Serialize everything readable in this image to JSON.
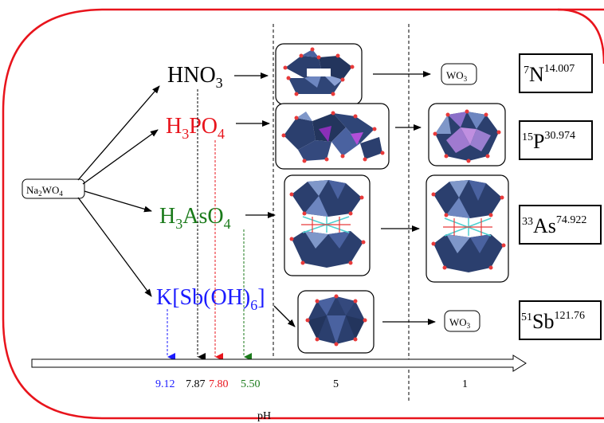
{
  "start": {
    "sub": [
      "Na",
      "2",
      "WO",
      "4"
    ]
  },
  "reagents": {
    "hno3": {
      "parts": [
        "HNO",
        "3"
      ],
      "color": "#000000"
    },
    "h3po4": {
      "parts": [
        "H",
        "3",
        "PO",
        "4"
      ],
      "color": "#e8141c"
    },
    "h3aso4": {
      "parts": [
        "H",
        "3",
        "AsO",
        "4"
      ],
      "color": "#1a7a1a"
    },
    "ksb": {
      "parts": [
        "K[Sb(OH)",
        "6",
        "]"
      ],
      "color": "#1b1bff"
    }
  },
  "products": {
    "wo3_top": [
      "WO",
      "3"
    ],
    "wo3_bottom": [
      "WO",
      "3"
    ]
  },
  "elements": [
    {
      "atomic": "7",
      "symbol": "N",
      "mass": "14.007"
    },
    {
      "atomic": "15",
      "symbol": "P",
      "mass": "30.974"
    },
    {
      "atomic": "33",
      "symbol": "As",
      "mass": "74.922"
    },
    {
      "atomic": "51",
      "symbol": "Sb",
      "mass": "121.76"
    }
  ],
  "axis": {
    "label": "pH",
    "ticks": [
      {
        "text": "9.12",
        "color": "#1b1bff"
      },
      {
        "text": "7.87",
        "color": "#000000"
      },
      {
        "text": "7.80",
        "color": "#e8141c"
      },
      {
        "text": "5.50",
        "color": "#1a7a1a"
      },
      {
        "text": "5",
        "color": "#000000"
      },
      {
        "text": "1",
        "color": "#000000"
      }
    ]
  },
  "colors": {
    "frame": "#e8141c",
    "polyhedron": "#2b3f6e",
    "polyhedron_light": "#7f97c9",
    "oxygen": "#e83a3a",
    "sb_purple": "#8b2fb8",
    "linker": "#4fd0d0"
  }
}
